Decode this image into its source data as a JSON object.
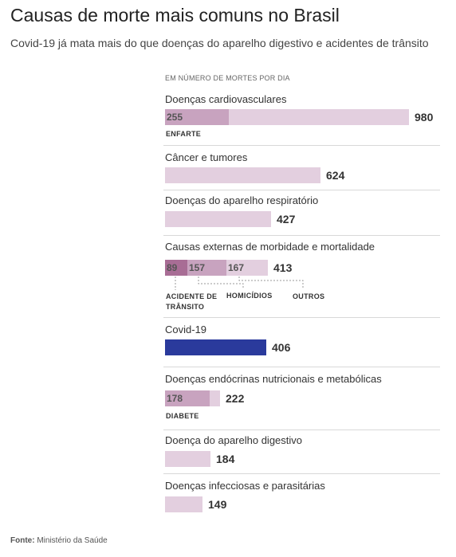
{
  "title": "Causas de morte mais comuns no Brasil",
  "subtitle": "Covid-19 já mata mais do que doenças do aparelho digestivo e acidentes de trânsito",
  "unit_label": "EM NÚMERO DE MORTES POR DIA",
  "source_prefix": "Fonte:",
  "source": "Ministério da Saúde",
  "colors": {
    "light": "#e3cfdf",
    "medium": "#c8a3bf",
    "dark": "#a86d95",
    "covid": "#2a3a9c"
  },
  "chart_data": {
    "type": "bar",
    "categories": [
      "Doenças cardiovasculares",
      "Câncer e tumores",
      "Doenças do aparelho respiratório",
      "Causas externas de morbidade e mortalidade",
      "Covid-19",
      "Doenças endócrinas nutricionais e metabólicas",
      "Doença do aparelho digestivo",
      "Doenças infecciosas e parasitárias"
    ],
    "values": [
      980,
      624,
      427,
      413,
      406,
      222,
      184,
      149
    ],
    "breakdowns": [
      {
        "category": "Doenças cardiovasculares",
        "segments": [
          {
            "label": "ENFARTE",
            "value": 255
          }
        ]
      },
      {
        "category": "Causas externas de morbidade e mortalidade",
        "segments": [
          {
            "label": "ACIDENTE DE TRÂNSITO",
            "value": 89
          },
          {
            "label": "HOMICÍDIOS",
            "value": 157
          },
          {
            "label": "OUTROS",
            "value": 167
          }
        ]
      },
      {
        "category": "Doenças endócrinas nutricionais e metabólicas",
        "segments": [
          {
            "label": "DIABETE",
            "value": 178
          }
        ]
      }
    ]
  },
  "labels": {
    "enfarte": "ENFARTE",
    "acidente_line1": "ACIDENTE DE",
    "acidente_line2": "TRÂNSITO",
    "homicidios": "HOMICÍDIOS",
    "outros": "OUTROS",
    "diabete": "DIABETE"
  }
}
